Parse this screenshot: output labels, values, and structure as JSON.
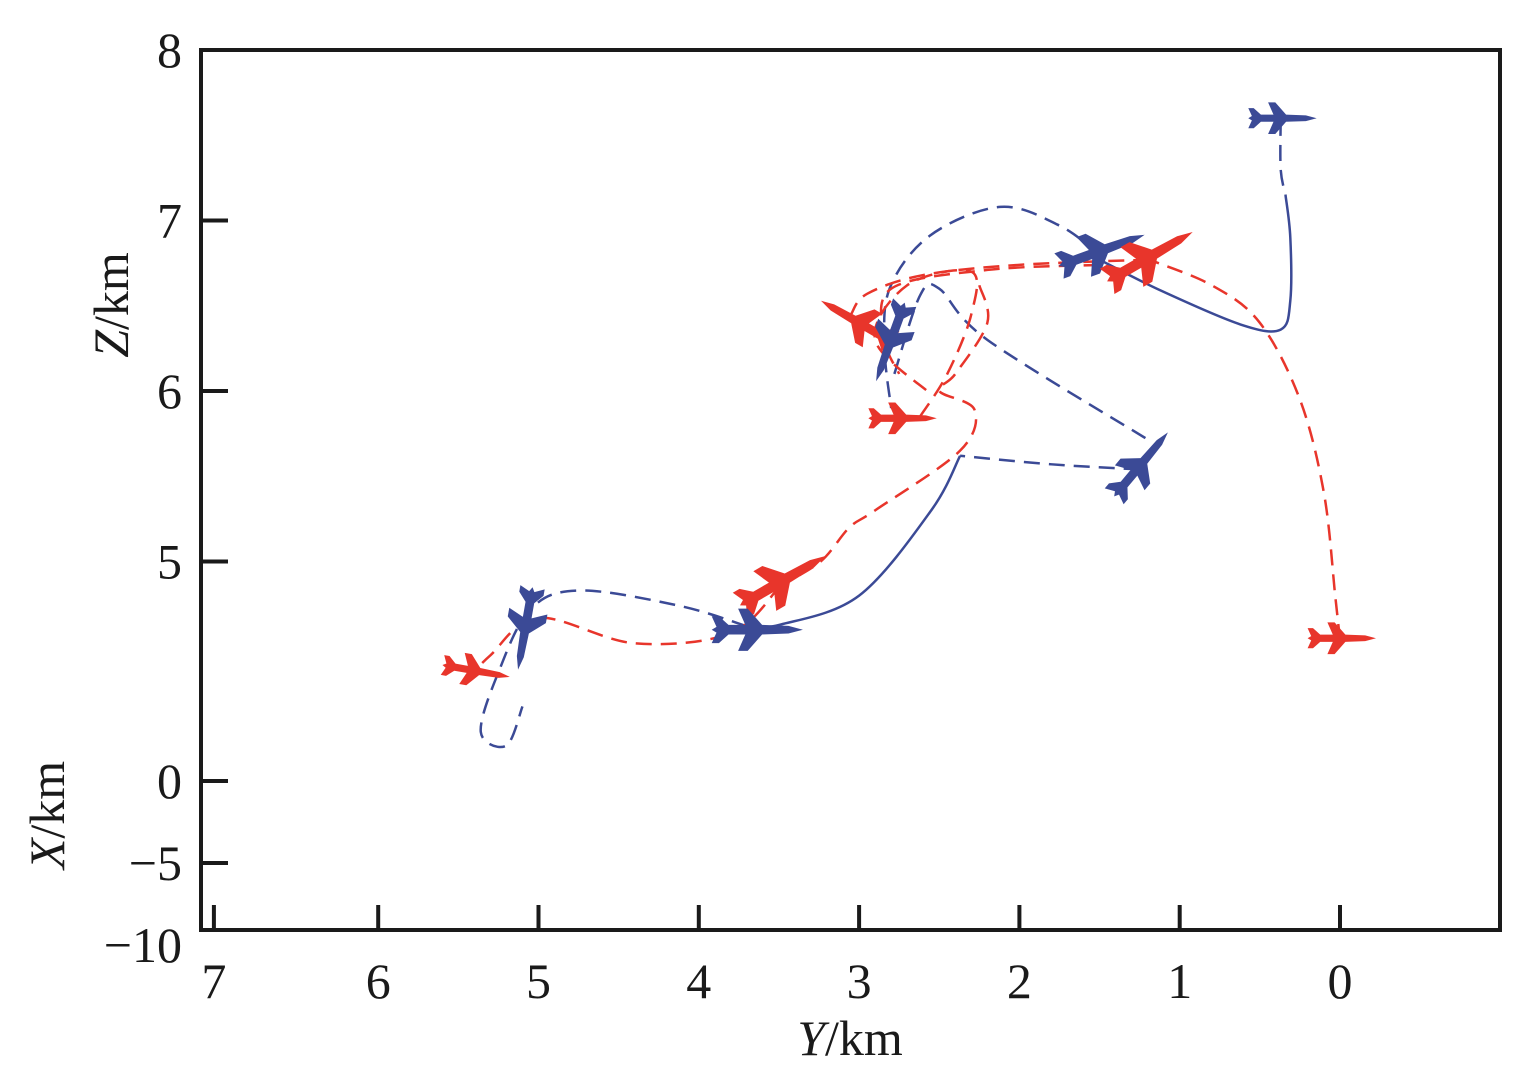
{
  "chart_data": {
    "type": "line",
    "title": "",
    "xlabel": {
      "italic": "Y",
      "unit": "/km"
    },
    "ylabel_upper": {
      "italic": "Z",
      "unit": "/km"
    },
    "ylabel_lower": {
      "italic": "X",
      "unit": "/km"
    },
    "x_ticks": [
      "7",
      "6",
      "5",
      "4",
      "3",
      "2",
      "1",
      "0"
    ],
    "x_tick_values": [
      7,
      6,
      5,
      4,
      3,
      2,
      1,
      0
    ],
    "y_ticks_upper": [
      "8",
      "7",
      "6",
      "5"
    ],
    "y_tick_upper_values": [
      8,
      7,
      6,
      5
    ],
    "y_ticks_lower": [
      "0",
      "−5",
      "−10"
    ],
    "colors": {
      "blue": "#3b4a96",
      "red": "#e8352b",
      "axis": "#1a1a1a"
    },
    "series": [
      {
        "name": "blue-descent-dashed",
        "color": "blue",
        "dash": true,
        "points": [
          [
            0.37,
            7.59
          ],
          [
            0.37,
            7.3
          ],
          [
            0.34,
            7.15
          ]
        ]
      },
      {
        "name": "blue-descent-solid",
        "color": "blue",
        "dash": false,
        "points": [
          [
            0.34,
            7.15
          ],
          [
            0.31,
            6.9
          ],
          [
            0.31,
            6.53
          ],
          [
            0.37,
            6.36
          ],
          [
            0.62,
            6.39
          ],
          [
            1.12,
            6.59
          ],
          [
            1.5,
            6.77
          ]
        ]
      },
      {
        "name": "blue-arc-dashed",
        "color": "blue",
        "dash": true,
        "points": [
          [
            1.5,
            6.8
          ],
          [
            1.75,
            6.97
          ],
          [
            2.12,
            7.08
          ],
          [
            2.56,
            6.91
          ],
          [
            2.81,
            6.6
          ],
          [
            2.84,
            6.24
          ],
          [
            2.8,
            5.9
          ]
        ]
      },
      {
        "name": "blue-loop-dashed",
        "color": "blue",
        "dash": true,
        "points": [
          [
            2.78,
            6.1
          ],
          [
            2.62,
            6.56
          ],
          [
            2.5,
            6.6
          ],
          [
            2.2,
            6.3
          ],
          [
            1.19,
            5.71
          ]
        ]
      },
      {
        "name": "blue-right-dashed",
        "color": "blue",
        "dash": true,
        "points": [
          [
            1.25,
            5.54
          ],
          [
            1.8,
            5.57
          ],
          [
            2.37,
            5.62
          ]
        ]
      },
      {
        "name": "blue-dive-solid",
        "color": "blue",
        "dash": false,
        "points": [
          [
            2.37,
            5.62
          ],
          [
            2.55,
            5.3
          ],
          [
            3.0,
            4.8
          ],
          [
            3.49,
            4.63
          ],
          [
            3.7,
            4.62
          ]
        ]
      },
      {
        "name": "blue-left-dashed",
        "color": "blue",
        "dash": true,
        "points": [
          [
            3.7,
            4.62
          ],
          [
            4.12,
            4.74
          ],
          [
            4.74,
            4.83
          ],
          [
            5.05,
            4.72
          ],
          [
            5.25,
            4.35
          ],
          [
            5.36,
            4.0
          ],
          [
            5.2,
            3.92
          ],
          [
            5.1,
            4.15
          ]
        ]
      },
      {
        "name": "red-climb-dashed",
        "color": "red",
        "dash": true,
        "points": [
          [
            0.0,
            4.54
          ],
          [
            0.03,
            4.8
          ],
          [
            0.1,
            5.4
          ],
          [
            0.25,
            5.95
          ],
          [
            0.5,
            6.4
          ],
          [
            0.8,
            6.62
          ],
          [
            1.19,
            6.77
          ]
        ]
      },
      {
        "name": "red-top-dashed",
        "color": "red",
        "dash": true,
        "points": [
          [
            1.19,
            6.77
          ],
          [
            2.0,
            6.74
          ],
          [
            2.6,
            6.68
          ],
          [
            2.95,
            6.57
          ],
          [
            3.05,
            6.45
          ]
        ]
      },
      {
        "name": "red-top2-dashed",
        "color": "red",
        "dash": true,
        "points": [
          [
            1.5,
            6.74
          ],
          [
            2.2,
            6.71
          ],
          [
            2.8,
            6.6
          ],
          [
            2.84,
            6.3
          ],
          [
            2.75,
            6.1
          ]
        ]
      },
      {
        "name": "red-s-dashed",
        "color": "red",
        "dash": true,
        "points": [
          [
            2.25,
            6.62
          ],
          [
            2.2,
            6.4
          ],
          [
            2.4,
            6.1
          ],
          [
            2.5,
            6.0
          ],
          [
            2.28,
            5.89
          ],
          [
            2.37,
            5.65
          ],
          [
            2.9,
            5.3
          ],
          [
            3.06,
            5.2
          ],
          [
            3.24,
            5.0
          ],
          [
            3.49,
            4.86
          ]
        ]
      },
      {
        "name": "red-inner-dashed",
        "color": "red",
        "dash": true,
        "points": [
          [
            2.62,
            5.85
          ],
          [
            2.45,
            6.1
          ],
          [
            2.3,
            6.45
          ],
          [
            2.3,
            6.7
          ],
          [
            2.7,
            6.62
          ],
          [
            2.9,
            6.3
          ],
          [
            2.55,
            5.98
          ]
        ]
      },
      {
        "name": "red-left-dashed",
        "color": "red",
        "dash": true,
        "points": [
          [
            3.49,
            4.86
          ],
          [
            3.8,
            4.58
          ],
          [
            4.4,
            4.52
          ],
          [
            5.0,
            4.67
          ],
          [
            5.3,
            4.45
          ],
          [
            5.43,
            4.32
          ]
        ]
      }
    ],
    "aircraft": [
      {
        "color": "blue",
        "Y": 0.37,
        "Z": 7.6,
        "heading": 0,
        "size": 0.9
      },
      {
        "color": "blue",
        "Y": 1.5,
        "Z": 6.82,
        "heading": -20,
        "size": 1.2
      },
      {
        "color": "red",
        "Y": 1.2,
        "Z": 6.78,
        "heading": -30,
        "size": 1.3
      },
      {
        "color": "red",
        "Y": 3.0,
        "Z": 6.4,
        "heading": 210,
        "size": 1.1
      },
      {
        "color": "blue",
        "Y": 2.8,
        "Z": 6.3,
        "heading": 110,
        "size": 1.1
      },
      {
        "color": "red",
        "Y": 2.74,
        "Z": 5.84,
        "heading": 0,
        "size": 0.9
      },
      {
        "color": "blue",
        "Y": 1.25,
        "Z": 5.56,
        "heading": -50,
        "size": 1.1
      },
      {
        "color": "red",
        "Y": 3.49,
        "Z": 4.88,
        "heading": -30,
        "size": 1.3
      },
      {
        "color": "blue",
        "Y": 3.65,
        "Z": 4.6,
        "heading": 0,
        "size": 1.2
      },
      {
        "color": "blue",
        "Y": 5.08,
        "Z": 4.62,
        "heading": 100,
        "size": 1.1
      },
      {
        "color": "red",
        "Y": 5.4,
        "Z": 4.36,
        "heading": 10,
        "size": 0.9
      },
      {
        "color": "red",
        "Y": 0.0,
        "Z": 4.55,
        "heading": 0,
        "size": 0.9
      }
    ]
  }
}
